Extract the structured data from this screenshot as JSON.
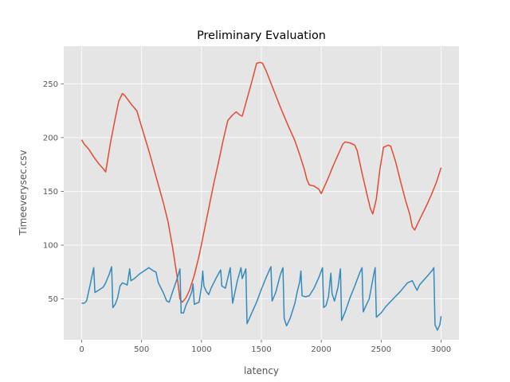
{
  "chart_data": {
    "type": "line",
    "title": "Preliminary Evaluation",
    "xlabel": "latency",
    "ylabel": "Timeeverysec.csv",
    "xlim": [
      -150,
      3150
    ],
    "ylim": [
      12,
      285
    ],
    "xticks": [
      0,
      500,
      1000,
      1500,
      2000,
      2500,
      3000
    ],
    "yticks": [
      50,
      100,
      150,
      200,
      250
    ],
    "grid": true,
    "style": "ggplot",
    "series": [
      {
        "color": "#E24A33",
        "points": [
          [
            0,
            198
          ],
          [
            20,
            194
          ],
          [
            60,
            189
          ],
          [
            100,
            182
          ],
          [
            140,
            176
          ],
          [
            180,
            171
          ],
          [
            200,
            168
          ],
          [
            240,
            195
          ],
          [
            280,
            218
          ],
          [
            310,
            234
          ],
          [
            340,
            241
          ],
          [
            360,
            239
          ],
          [
            380,
            236
          ],
          [
            420,
            230
          ],
          [
            460,
            225
          ],
          [
            500,
            210
          ],
          [
            560,
            188
          ],
          [
            620,
            164
          ],
          [
            680,
            140
          ],
          [
            720,
            122
          ],
          [
            760,
            97
          ],
          [
            800,
            68
          ],
          [
            820,
            50
          ],
          [
            840,
            47
          ],
          [
            870,
            51
          ],
          [
            900,
            58
          ],
          [
            940,
            72
          ],
          [
            980,
            90
          ],
          [
            1020,
            112
          ],
          [
            1060,
            134
          ],
          [
            1100,
            156
          ],
          [
            1140,
            176
          ],
          [
            1180,
            197
          ],
          [
            1220,
            216
          ],
          [
            1260,
            221
          ],
          [
            1290,
            224
          ],
          [
            1320,
            221
          ],
          [
            1340,
            220
          ],
          [
            1380,
            236
          ],
          [
            1420,
            252
          ],
          [
            1460,
            269
          ],
          [
            1490,
            270
          ],
          [
            1510,
            269
          ],
          [
            1540,
            262
          ],
          [
            1600,
            245
          ],
          [
            1660,
            228
          ],
          [
            1720,
            212
          ],
          [
            1780,
            197
          ],
          [
            1820,
            184
          ],
          [
            1860,
            170
          ],
          [
            1880,
            161
          ],
          [
            1900,
            156
          ],
          [
            1940,
            155
          ],
          [
            1980,
            152
          ],
          [
            2000,
            148
          ],
          [
            2020,
            153
          ],
          [
            2060,
            163
          ],
          [
            2100,
            174
          ],
          [
            2140,
            184
          ],
          [
            2180,
            194
          ],
          [
            2200,
            196
          ],
          [
            2240,
            195
          ],
          [
            2280,
            193
          ],
          [
            2300,
            188
          ],
          [
            2340,
            167
          ],
          [
            2380,
            148
          ],
          [
            2410,
            134
          ],
          [
            2430,
            129
          ],
          [
            2460,
            143
          ],
          [
            2490,
            171
          ],
          [
            2520,
            191
          ],
          [
            2560,
            193
          ],
          [
            2580,
            192
          ],
          [
            2620,
            178
          ],
          [
            2660,
            160
          ],
          [
            2700,
            143
          ],
          [
            2740,
            128
          ],
          [
            2760,
            117
          ],
          [
            2780,
            114
          ],
          [
            2800,
            119
          ],
          [
            2840,
            128
          ],
          [
            2880,
            137
          ],
          [
            2920,
            147
          ],
          [
            2960,
            158
          ],
          [
            3000,
            172
          ]
        ]
      },
      {
        "color": "#348ABD",
        "points": [
          [
            0,
            46
          ],
          [
            20,
            46
          ],
          [
            40,
            48
          ],
          [
            70,
            63
          ],
          [
            100,
            79
          ],
          [
            110,
            56
          ],
          [
            140,
            58
          ],
          [
            180,
            61
          ],
          [
            200,
            65
          ],
          [
            230,
            73
          ],
          [
            250,
            80
          ],
          [
            260,
            42
          ],
          [
            280,
            45
          ],
          [
            300,
            51
          ],
          [
            320,
            62
          ],
          [
            340,
            65
          ],
          [
            360,
            64
          ],
          [
            380,
            63
          ],
          [
            400,
            78
          ],
          [
            410,
            67
          ],
          [
            440,
            69
          ],
          [
            480,
            73
          ],
          [
            520,
            76
          ],
          [
            560,
            79
          ],
          [
            600,
            76
          ],
          [
            620,
            75
          ],
          [
            640,
            65
          ],
          [
            680,
            56
          ],
          [
            710,
            48
          ],
          [
            730,
            47
          ],
          [
            760,
            57
          ],
          [
            800,
            70
          ],
          [
            820,
            78
          ],
          [
            830,
            37
          ],
          [
            850,
            37
          ],
          [
            870,
            44
          ],
          [
            900,
            51
          ],
          [
            920,
            57
          ],
          [
            930,
            64
          ],
          [
            940,
            45
          ],
          [
            960,
            46
          ],
          [
            980,
            47
          ],
          [
            1000,
            61
          ],
          [
            1010,
            76
          ],
          [
            1020,
            62
          ],
          [
            1040,
            57
          ],
          [
            1060,
            54
          ],
          [
            1080,
            60
          ],
          [
            1120,
            69
          ],
          [
            1160,
            77
          ],
          [
            1170,
            62
          ],
          [
            1200,
            60
          ],
          [
            1240,
            79
          ],
          [
            1260,
            46
          ],
          [
            1300,
            67
          ],
          [
            1330,
            79
          ],
          [
            1340,
            69
          ],
          [
            1370,
            78
          ],
          [
            1380,
            27
          ],
          [
            1420,
            37
          ],
          [
            1460,
            47
          ],
          [
            1500,
            59
          ],
          [
            1540,
            70
          ],
          [
            1580,
            80
          ],
          [
            1590,
            48
          ],
          [
            1620,
            56
          ],
          [
            1660,
            73
          ],
          [
            1680,
            79
          ],
          [
            1690,
            32
          ],
          [
            1710,
            25
          ],
          [
            1740,
            32
          ],
          [
            1780,
            46
          ],
          [
            1800,
            57
          ],
          [
            1820,
            66
          ],
          [
            1830,
            76
          ],
          [
            1840,
            53
          ],
          [
            1870,
            52
          ],
          [
            1900,
            53
          ],
          [
            1940,
            60
          ],
          [
            1980,
            70
          ],
          [
            2010,
            79
          ],
          [
            2020,
            42
          ],
          [
            2040,
            44
          ],
          [
            2060,
            52
          ],
          [
            2080,
            74
          ],
          [
            2090,
            55
          ],
          [
            2110,
            48
          ],
          [
            2140,
            61
          ],
          [
            2160,
            78
          ],
          [
            2170,
            30
          ],
          [
            2200,
            38
          ],
          [
            2240,
            51
          ],
          [
            2280,
            62
          ],
          [
            2320,
            74
          ],
          [
            2340,
            79
          ],
          [
            2350,
            38
          ],
          [
            2370,
            43
          ],
          [
            2400,
            50
          ],
          [
            2420,
            62
          ],
          [
            2440,
            74
          ],
          [
            2450,
            79
          ],
          [
            2460,
            33
          ],
          [
            2500,
            37
          ],
          [
            2540,
            43
          ],
          [
            2600,
            50
          ],
          [
            2660,
            57
          ],
          [
            2720,
            65
          ],
          [
            2760,
            67
          ],
          [
            2790,
            60
          ],
          [
            2800,
            58
          ],
          [
            2820,
            63
          ],
          [
            2860,
            68
          ],
          [
            2900,
            73
          ],
          [
            2930,
            77
          ],
          [
            2940,
            79
          ],
          [
            2950,
            26
          ],
          [
            2970,
            21
          ],
          [
            2990,
            26
          ],
          [
            3000,
            34
          ]
        ]
      }
    ]
  }
}
